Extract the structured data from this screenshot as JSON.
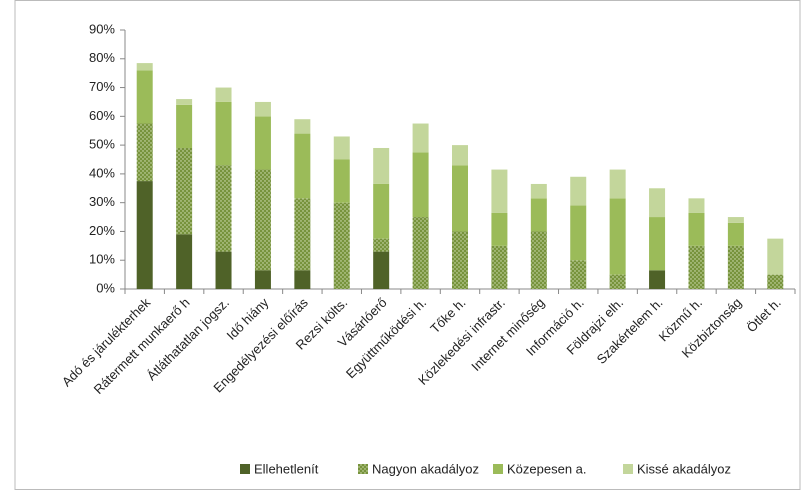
{
  "chart_data": {
    "type": "bar",
    "stacked": true,
    "categories": [
      "Adó és járulékterhek",
      "Rátermett munkaerő h",
      "Átláthatatlan jogsz.",
      "Idő hiány",
      "Engedélyezési előírás",
      "Rezsi költs.",
      "Vásárlóerő",
      "Együttműködési h.",
      "Tőke  h.",
      "Közlekedési infrastr.",
      "Internet minőség",
      "Információ h.",
      "Földrajzi elh.",
      "Szakértelem h.",
      "Közmű h.",
      "Közbiztonság",
      "Ötlet h."
    ],
    "series": [
      {
        "name": "Ellehetlenít",
        "color": "#4f6228",
        "values": [
          37.5,
          19,
          13,
          6.5,
          6.5,
          0,
          13,
          0,
          0,
          0,
          0,
          0,
          0,
          6.5,
          0,
          0,
          0
        ]
      },
      {
        "name": "Nagyon akadályoz",
        "color": "#77933c",
        "pattern": "dots",
        "values": [
          20,
          30,
          30,
          35,
          25,
          30,
          4.5,
          25,
          20,
          15,
          20,
          10,
          5,
          0,
          15,
          15,
          5
        ]
      },
      {
        "name": "Közepesen a.",
        "color": "#9bbb59",
        "values": [
          18.5,
          15,
          22,
          18.5,
          22.5,
          15,
          19,
          22.5,
          23,
          11.5,
          11.5,
          19,
          26.5,
          18.5,
          11.5,
          8,
          0
        ]
      },
      {
        "name": "Kissé akadályoz",
        "color": "#c3d69b",
        "values": [
          2.5,
          2,
          5,
          5,
          5,
          8,
          12.5,
          10,
          7,
          15,
          5,
          10,
          10,
          10,
          5,
          2,
          12.5
        ]
      }
    ],
    "ylim": [
      0,
      90
    ],
    "yticks": [
      {
        "value": 0,
        "label": "0%"
      },
      {
        "value": 10,
        "label": "10%"
      },
      {
        "value": 20,
        "label": "20%"
      },
      {
        "value": 30,
        "label": "30%"
      },
      {
        "value": 40,
        "label": "40%"
      },
      {
        "value": 50,
        "label": "50%"
      },
      {
        "value": 60,
        "label": "60%"
      },
      {
        "value": 70,
        "label": "70%"
      },
      {
        "value": 80,
        "label": "80%"
      },
      {
        "value": 90,
        "label": "90%"
      }
    ],
    "grid": false,
    "legend": "bottom"
  }
}
